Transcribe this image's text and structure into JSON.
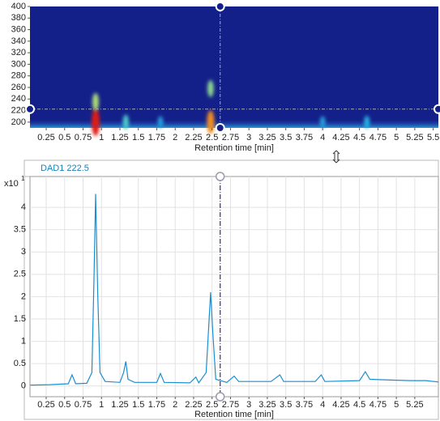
{
  "chart_data": [
    {
      "type": "heatmap",
      "x_label": "Retention time [min]",
      "xlim": [
        0.03,
        5.57
      ],
      "xticks": [
        0.25,
        0.5,
        0.75,
        1,
        1.25,
        1.5,
        1.75,
        2,
        2.25,
        2.5,
        2.75,
        3,
        3.25,
        3.5,
        3.75,
        4,
        4.25,
        4.5,
        4.75,
        5,
        5.25,
        5.5
      ],
      "ylim": [
        190,
        400
      ],
      "yticks": [
        200,
        220,
        240,
        260,
        280,
        300,
        320,
        340,
        360,
        380,
        400
      ],
      "x": [
        0.92,
        0.92,
        1.33,
        1.8,
        2.48,
        2.48,
        4.0,
        4.6
      ],
      "y": [
        200,
        235,
        200,
        200,
        200,
        258,
        200,
        200
      ],
      "values": [
        1.0,
        0.5,
        0.35,
        0.2,
        0.8,
        0.45,
        0.2,
        0.25
      ],
      "cursor": {
        "x": 2.61,
        "y": 222.5
      }
    },
    {
      "type": "line",
      "title": "DAD1 222.5",
      "x_label": "Retention time [min]",
      "y_unit": "x10",
      "y_unit_exponent": "1",
      "color": "#1a8fd0",
      "grid": true,
      "xlim": [
        0.03,
        5.57
      ],
      "xticks": [
        0.25,
        0.5,
        0.75,
        1,
        1.25,
        1.5,
        1.75,
        2,
        2.25,
        2.5,
        2.75,
        3,
        3.25,
        3.5,
        3.75,
        4,
        4.25,
        4.5,
        4.75,
        5,
        5.25
      ],
      "ylim": [
        -0.24,
        4.69
      ],
      "yticks": [
        0,
        0.5,
        1,
        1.5,
        2,
        2.5,
        3,
        3.5,
        4
      ],
      "cursor": {
        "x": 2.61
      },
      "x": [
        0.03,
        0.3,
        0.55,
        0.6,
        0.65,
        0.8,
        0.87,
        0.9,
        0.92,
        0.95,
        0.98,
        1.05,
        1.25,
        1.3,
        1.33,
        1.36,
        1.45,
        1.75,
        1.8,
        1.85,
        2.2,
        2.28,
        2.32,
        2.42,
        2.46,
        2.48,
        2.51,
        2.55,
        2.7,
        2.8,
        2.86,
        3.3,
        3.42,
        3.47,
        3.9,
        3.98,
        4.03,
        4.5,
        4.58,
        4.64,
        5.0,
        5.2,
        5.4,
        5.57
      ],
      "values": [
        0.02,
        0.03,
        0.05,
        0.25,
        0.05,
        0.06,
        0.3,
        2.5,
        4.3,
        2.0,
        0.3,
        0.1,
        0.08,
        0.3,
        0.55,
        0.15,
        0.08,
        0.08,
        0.28,
        0.08,
        0.07,
        0.2,
        0.07,
        0.3,
        1.5,
        2.1,
        1.2,
        0.15,
        0.08,
        0.22,
        0.1,
        0.1,
        0.25,
        0.1,
        0.1,
        0.25,
        0.1,
        0.12,
        0.32,
        0.15,
        0.13,
        0.12,
        0.12,
        0.09
      ]
    }
  ]
}
